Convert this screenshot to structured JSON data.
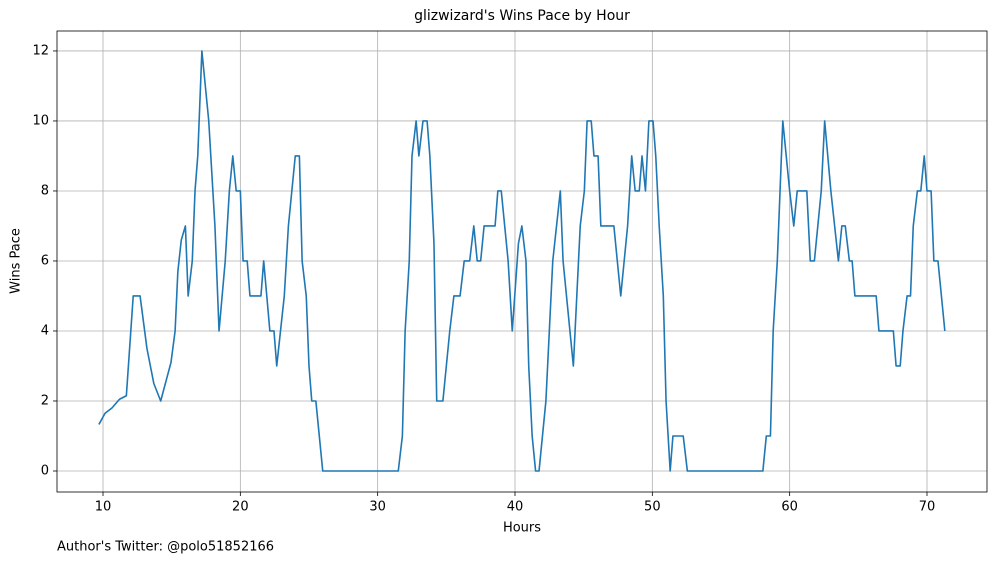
{
  "chart_data": {
    "type": "line",
    "title": "glizwizard's Wins Pace by Hour",
    "xlabel": "Hours",
    "ylabel": "Wins Pace",
    "footnote": "Author's Twitter: @polo51852166",
    "x": [
      9.7,
      10.15,
      10.65,
      11.2,
      11.7,
      12.2,
      12.7,
      13.2,
      13.7,
      14.2,
      14.95,
      15.25,
      15.45,
      15.7,
      16.0,
      16.2,
      16.5,
      16.7,
      16.9,
      17.2,
      17.7,
      18.15,
      18.45,
      18.9,
      19.2,
      19.45,
      19.7,
      20.0,
      20.2,
      20.5,
      20.7,
      21.2,
      21.5,
      21.7,
      22.15,
      22.45,
      22.65,
      23.2,
      23.5,
      24.0,
      24.3,
      24.5,
      24.8,
      25.0,
      25.2,
      25.5,
      26.0,
      31.5,
      31.8,
      32.0,
      32.3,
      32.5,
      32.8,
      33.0,
      33.3,
      33.6,
      33.8,
      34.1,
      34.3,
      34.75,
      35.25,
      35.55,
      36.0,
      36.3,
      36.7,
      37.0,
      37.25,
      37.5,
      37.75,
      38.55,
      38.75,
      39.0,
      39.5,
      39.8,
      40.25,
      40.5,
      40.8,
      41.0,
      41.25,
      41.5,
      41.75,
      42.25,
      42.75,
      43.3,
      43.5,
      44.0,
      44.25,
      44.75,
      45.05,
      45.25,
      45.55,
      45.75,
      46.05,
      46.25,
      47.2,
      47.7,
      48.2,
      48.5,
      48.75,
      49.05,
      49.25,
      49.5,
      49.75,
      50.05,
      50.25,
      50.5,
      50.8,
      51.0,
      51.3,
      51.5,
      52.25,
      52.55,
      58.05,
      58.3,
      58.6,
      58.8,
      59.1,
      59.5,
      60.0,
      60.3,
      60.55,
      61.25,
      61.5,
      61.8,
      62.3,
      62.55,
      63.0,
      63.55,
      63.8,
      64.05,
      64.35,
      64.55,
      64.75,
      66.3,
      66.5,
      67.55,
      67.75,
      68.05,
      68.25,
      68.55,
      68.8,
      69.0,
      69.3,
      69.55,
      69.8,
      70.0,
      70.3,
      70.5,
      70.8,
      71.3
    ],
    "series": [
      {
        "name": "Wins Pace",
        "color": "#1f77b4",
        "values": [
          1.33,
          1.65,
          1.8,
          2.05,
          2.15,
          5,
          5,
          3.5,
          2.5,
          2,
          3.1,
          4,
          5.7,
          6.6,
          7,
          5,
          6,
          8,
          9,
          12,
          10,
          7,
          4,
          6,
          8,
          9,
          8,
          8,
          6,
          6,
          5,
          5,
          5,
          6,
          4,
          4,
          3,
          5,
          7,
          9,
          9,
          6,
          5,
          3,
          2,
          2,
          0,
          0,
          1,
          4,
          6,
          9,
          10,
          9,
          10,
          10,
          9,
          6.5,
          2,
          2,
          4,
          5,
          5,
          6,
          6,
          7,
          6,
          6,
          7,
          7,
          8,
          8,
          6,
          4,
          6.5,
          7,
          6,
          3,
          1,
          0,
          0,
          2,
          6,
          8,
          6,
          4,
          3,
          7,
          8,
          10,
          10,
          9,
          9,
          7,
          7,
          5,
          7,
          9,
          8,
          8,
          9,
          8,
          10,
          10,
          9,
          7,
          5,
          2,
          0,
          1,
          1,
          0,
          0,
          1,
          1,
          4,
          6,
          10,
          8,
          7,
          8,
          8,
          6,
          6,
          8,
          10,
          8,
          6,
          7,
          7,
          6,
          6,
          5,
          5,
          4,
          4,
          3,
          3,
          4,
          5,
          5,
          7,
          8,
          8,
          9,
          8,
          8,
          6,
          6,
          4
        ]
      }
    ],
    "xlim": [
      6.65,
      74.37
    ],
    "xticks": [
      10,
      20,
      30,
      40,
      50,
      60,
      70
    ],
    "ylim": [
      -0.6,
      12.57
    ],
    "yticks": [
      0,
      2,
      4,
      6,
      8,
      10,
      12
    ],
    "grid": true
  }
}
